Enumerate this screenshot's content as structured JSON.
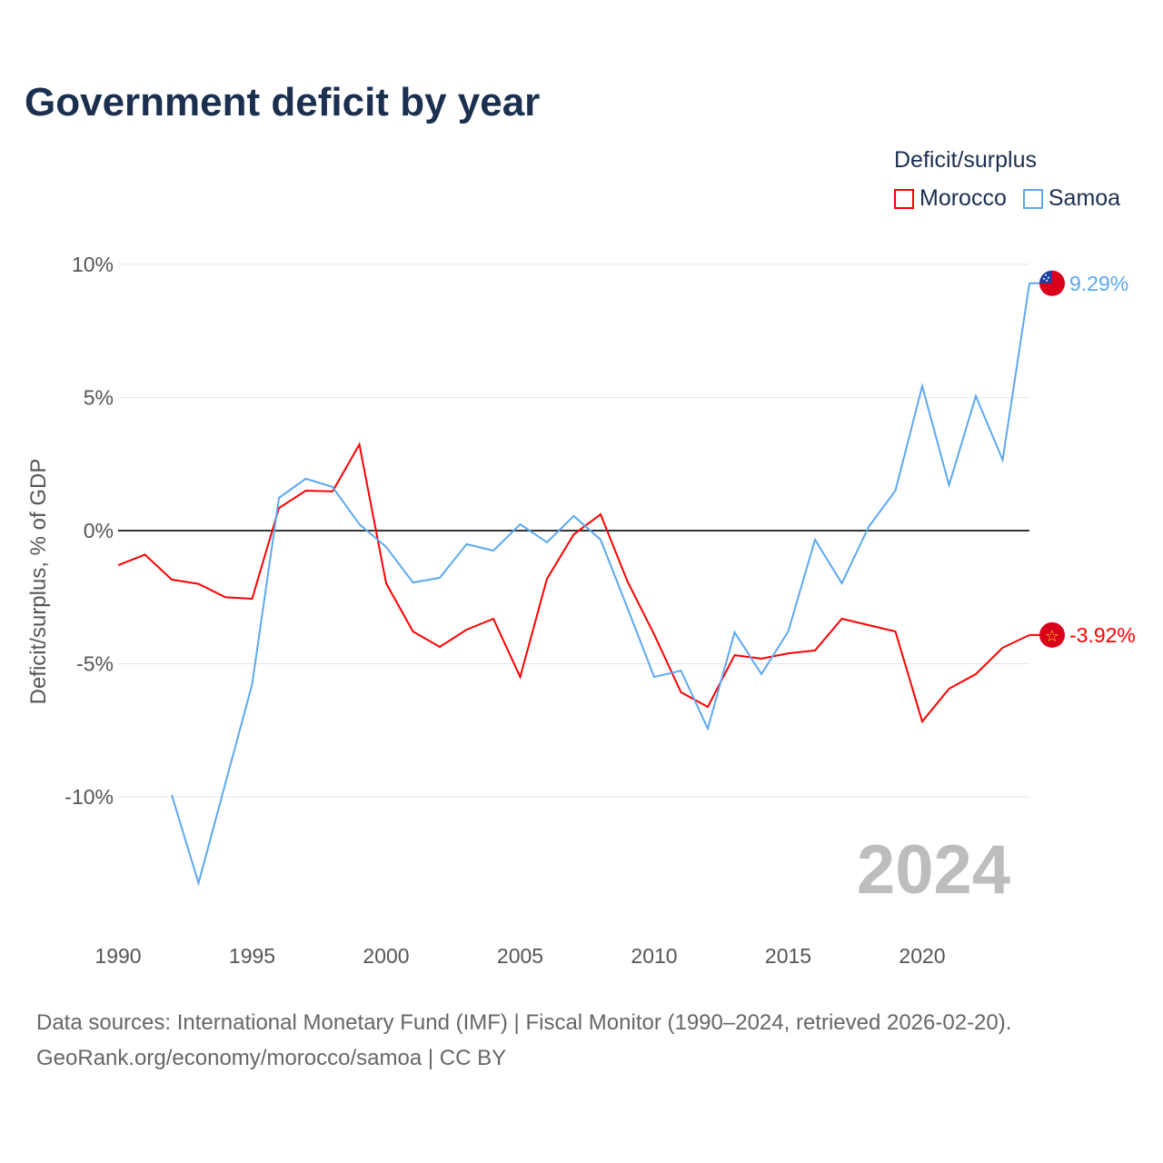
{
  "title": "Government deficit by year",
  "legend": {
    "title": "Deficit/surplus",
    "items": [
      "Morocco",
      "Samoa"
    ]
  },
  "year_watermark": "2024",
  "footer": {
    "line1": "Data sources: International Monetary Fund (IMF) | Fiscal Monitor (1990–2024, retrieved 2026-02-20).",
    "line2": "GeoRank.org/economy/morocco/samoa | CC BY"
  },
  "chart_data": {
    "type": "line",
    "title": "Government deficit by year",
    "xlabel": "",
    "ylabel": "Deficit/surplus, % of GDP",
    "xlim": [
      1990,
      2024
    ],
    "ylim": [
      -14.5,
      10
    ],
    "x_ticks": [
      "1990",
      "1995",
      "2000",
      "2005",
      "2010",
      "2015",
      "2020"
    ],
    "y_ticks": [
      {
        "v": 10,
        "label": "10%"
      },
      {
        "v": 5,
        "label": "5%"
      },
      {
        "v": 0,
        "label": "0%"
      },
      {
        "v": -5,
        "label": "-5%"
      },
      {
        "v": -10,
        "label": "-10%"
      }
    ],
    "series": [
      {
        "name": "Morocco",
        "color": "#ff0000",
        "end_label": "-3.92%",
        "start_year": 1990,
        "values": [
          -1.3,
          -0.9,
          -1.84,
          -2.0,
          -2.5,
          -2.56,
          0.85,
          1.5,
          1.47,
          3.24,
          -1.98,
          -3.79,
          -4.37,
          -3.72,
          -3.31,
          -5.5,
          -1.81,
          -0.14,
          0.61,
          -1.9,
          -3.9,
          -6.07,
          -6.62,
          -4.68,
          -4.81,
          -4.61,
          -4.5,
          -3.31,
          -3.55,
          -3.79,
          -7.17,
          -5.94,
          -5.39,
          -4.4,
          -3.92
        ]
      },
      {
        "name": "Samoa",
        "color": "#5ca8f0",
        "end_label": "9.29%",
        "start_year": 1992,
        "values": [
          -9.93,
          -13.24,
          -9.5,
          -5.77,
          1.23,
          1.95,
          1.64,
          0.24,
          -0.61,
          -1.95,
          -1.77,
          -0.51,
          -0.75,
          0.24,
          -0.44,
          0.55,
          -0.34,
          -2.9,
          -5.5,
          -5.26,
          -7.44,
          -3.82,
          -5.39,
          -3.79,
          -0.34,
          -1.98,
          0.14,
          1.5,
          5.43,
          1.71,
          5.05,
          2.66,
          9.29
        ]
      }
    ]
  }
}
